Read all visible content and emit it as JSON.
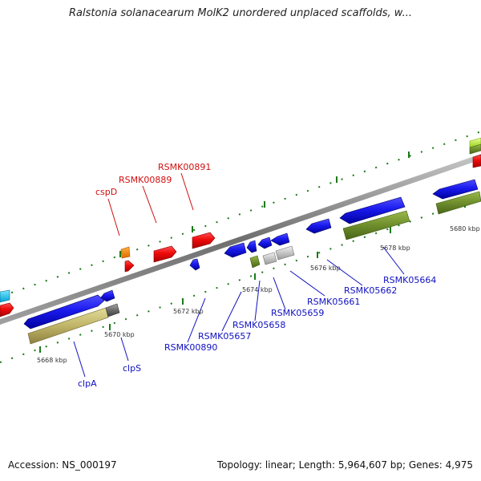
{
  "title": "Ralstonia solanacearum MolK2 unordered unplaced scaffolds, w...",
  "footer": {
    "accession": "Accession: NS_000197",
    "topology": "Topology: linear; Length: 5,964,607 bp; Genes: 4,975"
  },
  "colors": {
    "backbone": "#8a8a8a",
    "tick": "#1a7a1a",
    "forward_label": "#d01010",
    "reverse_label": "#1010c0"
  },
  "kbp_labels": [
    "5668 kbp",
    "5670 kbp",
    "5672 kbp",
    "5674 kbp",
    "5676 kbp",
    "5678 kbp",
    "5680 kbp"
  ],
  "forward_labels": [
    "cspD",
    "RSMK00889",
    "RSMK00891"
  ],
  "reverse_labels": [
    "clpA",
    "clpS",
    "RSMK00890",
    "RSMK05657",
    "RSMK05658",
    "RSMK05659",
    "RSMK05661",
    "RSMK05662",
    "RSMK05664"
  ]
}
